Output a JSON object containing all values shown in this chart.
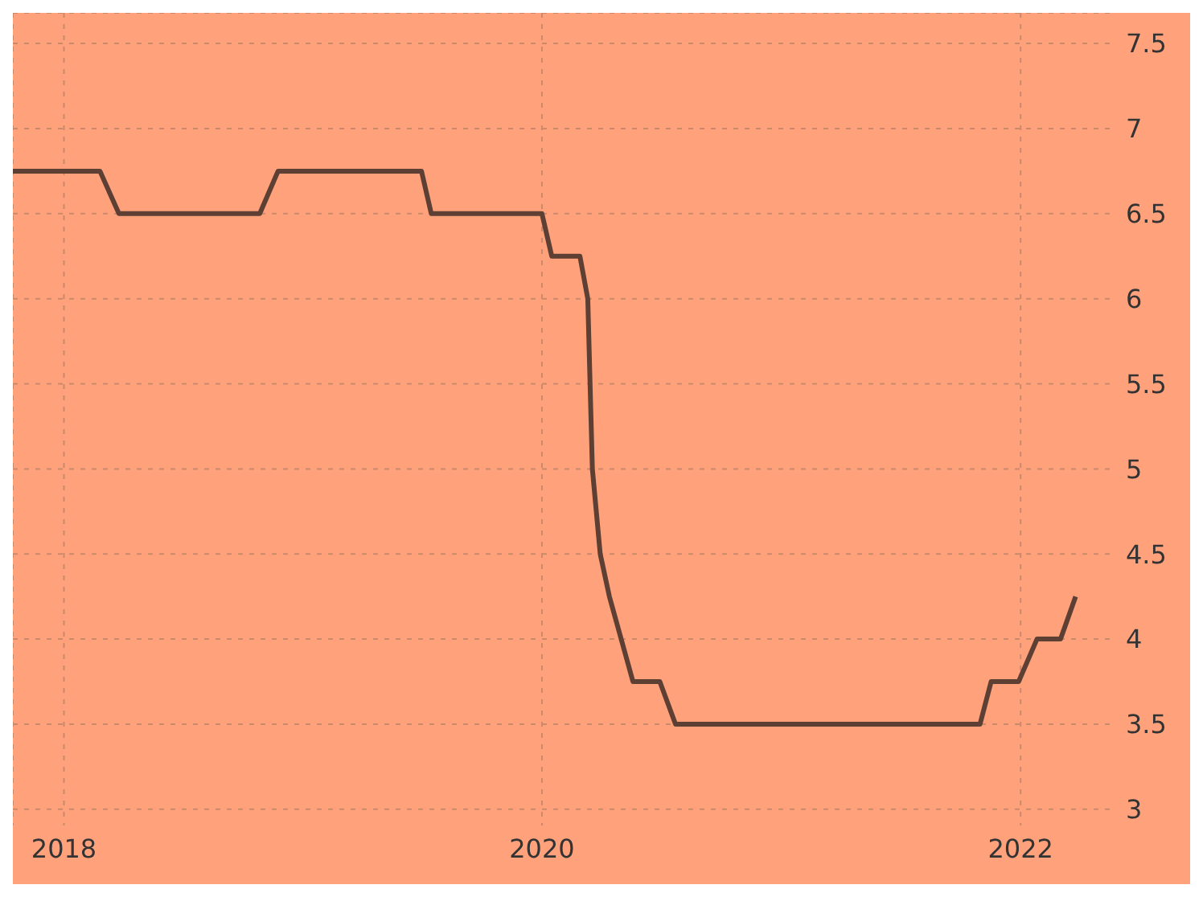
{
  "chart_data": {
    "type": "line",
    "x": [
      "2017-10-15",
      "2018-02-25",
      "2018-03-26",
      "2018-10-27",
      "2018-11-24",
      "2019-07-01",
      "2019-07-16",
      "2020-01-01",
      "2020-01-16",
      "2020-02-28",
      "2020-03-11",
      "2020-03-18",
      "2020-03-30",
      "2020-04-13",
      "2020-05-19",
      "2020-06-29",
      "2020-07-23",
      "2021-10-31",
      "2021-11-17",
      "2021-12-29",
      "2022-01-26",
      "2022-03-03",
      "2022-03-26"
    ],
    "series": [
      {
        "color": "#5e3f33",
        "values": [
          6.75,
          6.75,
          6.5,
          6.5,
          6.75,
          6.75,
          6.5,
          6.5,
          6.25,
          6.25,
          6.0,
          5.0,
          4.5,
          4.25,
          3.75,
          3.75,
          3.5,
          3.5,
          3.75,
          3.75,
          4.0,
          4.0,
          4.25
        ]
      }
    ],
    "xlim": [
      "2017-10-15",
      "2022-05-22"
    ],
    "xticks": [
      "2018",
      "2020",
      "2022"
    ],
    "ylim": [
      2.9,
      7.68
    ],
    "yticks": [
      3,
      3.5,
      4,
      4.5,
      5,
      5.5,
      6,
      6.5,
      7,
      7.5
    ],
    "grid": true,
    "marker": "none",
    "line_style": "solid"
  }
}
